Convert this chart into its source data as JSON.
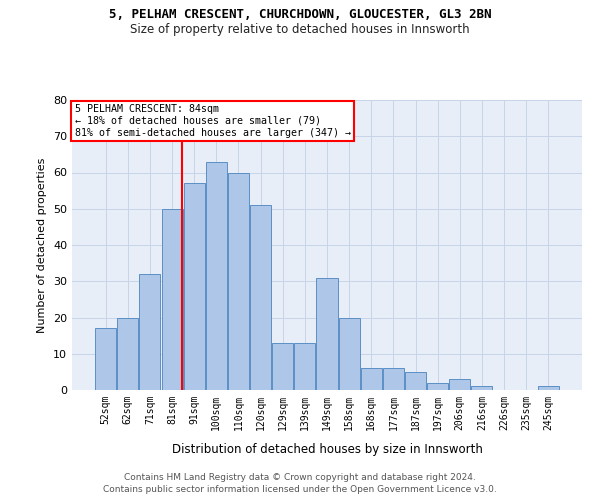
{
  "title1": "5, PELHAM CRESCENT, CHURCHDOWN, GLOUCESTER, GL3 2BN",
  "title2": "Size of property relative to detached houses in Innsworth",
  "xlabel": "Distribution of detached houses by size in Innsworth",
  "ylabel": "Number of detached properties",
  "categories": [
    "52sqm",
    "62sqm",
    "71sqm",
    "81sqm",
    "91sqm",
    "100sqm",
    "110sqm",
    "120sqm",
    "129sqm",
    "139sqm",
    "149sqm",
    "158sqm",
    "168sqm",
    "177sqm",
    "187sqm",
    "197sqm",
    "206sqm",
    "216sqm",
    "226sqm",
    "235sqm",
    "245sqm"
  ],
  "values": [
    17,
    20,
    32,
    50,
    57,
    63,
    60,
    51,
    13,
    13,
    31,
    20,
    6,
    6,
    5,
    2,
    3,
    1,
    0,
    0,
    1
  ],
  "bar_color": "#aec6e8",
  "bar_edge_color": "#5b8fc4",
  "annotation_text_line1": "5 PELHAM CRESCENT: 84sqm",
  "annotation_text_line2": "← 18% of detached houses are smaller (79)",
  "annotation_text_line3": "81% of semi-detached houses are larger (347) →",
  "annotation_box_color": "white",
  "annotation_box_edge_color": "red",
  "vline_color": "red",
  "vline_index": 3.47,
  "ylim": [
    0,
    80
  ],
  "yticks": [
    0,
    10,
    20,
    30,
    40,
    50,
    60,
    70,
    80
  ],
  "grid_color": "#c8d4e8",
  "background_color": "#e8eef8",
  "title1_fontsize": 9,
  "title2_fontsize": 8.5,
  "footer1": "Contains HM Land Registry data © Crown copyright and database right 2024.",
  "footer2": "Contains public sector information licensed under the Open Government Licence v3.0."
}
